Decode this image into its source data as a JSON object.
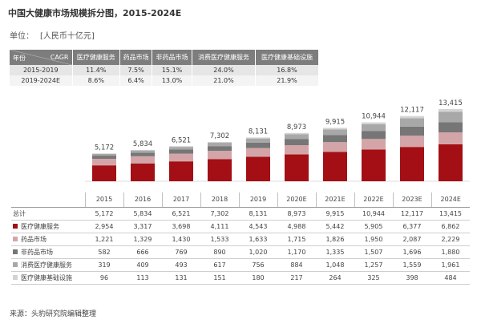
{
  "title": "中国大健康市场规模拆分图，2015-2024E",
  "unit": {
    "label": "单位：",
    "value": "[人民币十亿元]"
  },
  "cagr_table": {
    "corner_left": "年份",
    "corner_right": "CAGR",
    "headers": [
      "医疗健康服务",
      "药品市场",
      "非药品市场",
      "消费医疗健康服务",
      "医疗健康基础设施"
    ],
    "rows": [
      {
        "period": "2015-2019",
        "values": [
          "11.4%",
          "7.5%",
          "15.1%",
          "24.0%",
          "16.8%"
        ]
      },
      {
        "period": "2019-2024E",
        "values": [
          "8.6%",
          "6.4%",
          "13.0%",
          "21.0%",
          "21.9%"
        ]
      }
    ]
  },
  "colors": {
    "医疗健康服务": "#a30f14",
    "药品市场": "#d4a5a8",
    "非药品市场": "#767676",
    "消费医疗健康服务": "#a8a8a8",
    "医疗健康基础设施": "#d3d3d3"
  },
  "chart_data": {
    "type": "bar",
    "stacked": true,
    "categories": [
      "2015",
      "2016",
      "2017",
      "2018",
      "2019",
      "2020E",
      "2021E",
      "2022E",
      "2023E",
      "2024E"
    ],
    "totals": [
      5172,
      5834,
      6521,
      7302,
      8131,
      8973,
      9915,
      10944,
      12117,
      13415
    ],
    "total_labels": [
      "5,172",
      "5,834",
      "6,521",
      "7,302",
      "8,131",
      "8,973",
      "9,915",
      "10,944",
      "12,117",
      "13,415"
    ],
    "series": [
      {
        "name": "医疗健康服务",
        "values": [
          2954,
          3317,
          3698,
          4111,
          4543,
          4988,
          5442,
          5905,
          6377,
          6862
        ],
        "labels": [
          "2,954",
          "3,317",
          "3,698",
          "4,111",
          "4,543",
          "4,988",
          "5,442",
          "5,905",
          "6,377",
          "6,862"
        ]
      },
      {
        "name": "药品市场",
        "values": [
          1221,
          1329,
          1430,
          1533,
          1633,
          1715,
          1826,
          1950,
          2087,
          2229
        ],
        "labels": [
          "1,221",
          "1,329",
          "1,430",
          "1,533",
          "1,633",
          "1,715",
          "1,826",
          "1,950",
          "2,087",
          "2,229"
        ]
      },
      {
        "name": "非药品市场",
        "values": [
          582,
          666,
          769,
          890,
          1020,
          1170,
          1335,
          1507,
          1696,
          1880
        ],
        "labels": [
          "582",
          "666",
          "769",
          "890",
          "1,020",
          "1,170",
          "1,335",
          "1,507",
          "1,696",
          "1,880"
        ]
      },
      {
        "name": "消费医疗健康服务",
        "values": [
          319,
          409,
          493,
          617,
          756,
          884,
          1048,
          1257,
          1559,
          1961
        ],
        "labels": [
          "319",
          "409",
          "493",
          "617",
          "756",
          "884",
          "1,048",
          "1,257",
          "1,559",
          "1,961"
        ]
      },
      {
        "name": "医疗健康基础设施",
        "values": [
          96,
          113,
          131,
          151,
          180,
          217,
          264,
          325,
          398,
          484
        ],
        "labels": [
          "96",
          "113",
          "131",
          "151",
          "180",
          "217",
          "264",
          "325",
          "398",
          "484"
        ]
      }
    ]
  },
  "table": {
    "total_label": "总计"
  },
  "source": "来源：头豹研究院编辑整理"
}
